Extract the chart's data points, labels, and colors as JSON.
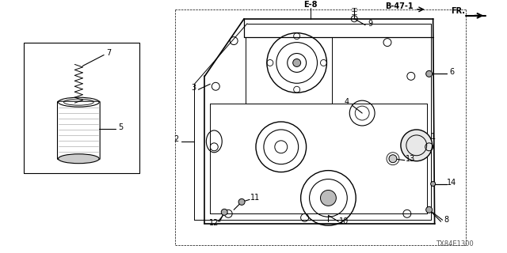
{
  "bg_color": "#ffffff",
  "line_color": "#000000",
  "gray_color": "#888888",
  "light_gray": "#cccccc",
  "diagram_code": "TX84E1300",
  "ref_e8": "E-8",
  "ref_b47": "B-47-1",
  "ref_fr": "FR."
}
